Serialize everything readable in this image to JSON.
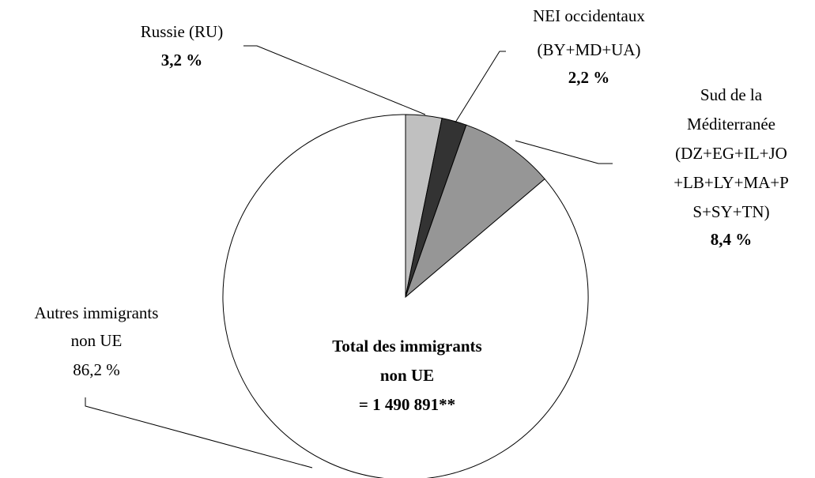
{
  "chart_data": {
    "type": "pie",
    "categories": [
      [
        "Russie  (RU)"
      ],
      [
        "NEI occidentaux",
        "(BY+MD+UA)"
      ],
      [
        "Sud de la",
        "Méditerranée",
        "(DZ+EG+IL+JO",
        "+LB+LY+MA+P",
        "S+SY+TN)"
      ],
      [
        "Autres immigrants",
        "non UE"
      ]
    ],
    "values": [
      3.2,
      2.2,
      8.4,
      86.2
    ],
    "value_labels": [
      "3,2 %",
      "2,2 %",
      "8,4 %",
      "86,2 %"
    ],
    "colors": [
      "#c0c0c0",
      "#333333",
      "#969696",
      "#ffffff"
    ],
    "annotation": [
      "Total des immigrants",
      "non UE",
      "= 1 490 891**"
    ]
  }
}
